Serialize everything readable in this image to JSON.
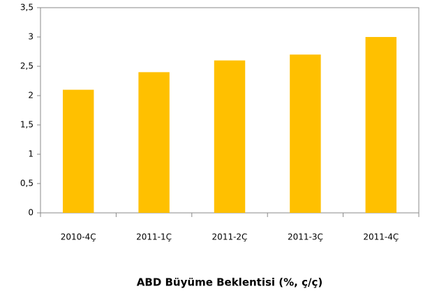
{
  "chart_data": {
    "type": "bar",
    "title": "ABD Büyüme Beklentisi (%, ç/ç)",
    "categories": [
      "2010-4Ç",
      "2011-1Ç",
      "2011-2Ç",
      "2011-3Ç",
      "2011-4Ç"
    ],
    "values": [
      2.1,
      2.4,
      2.6,
      2.7,
      3.0
    ],
    "color": "#ffc000",
    "ylim": [
      0,
      3.5
    ],
    "yticks": [
      0,
      {
        "value": 0.5,
        "label": "0,5"
      },
      1,
      {
        "value": 1.5,
        "label": "1,5"
      },
      2,
      {
        "value": 2.5,
        "label": "2,5"
      },
      3,
      {
        "value": 3.5,
        "label": "3,5"
      }
    ],
    "grid": false
  }
}
